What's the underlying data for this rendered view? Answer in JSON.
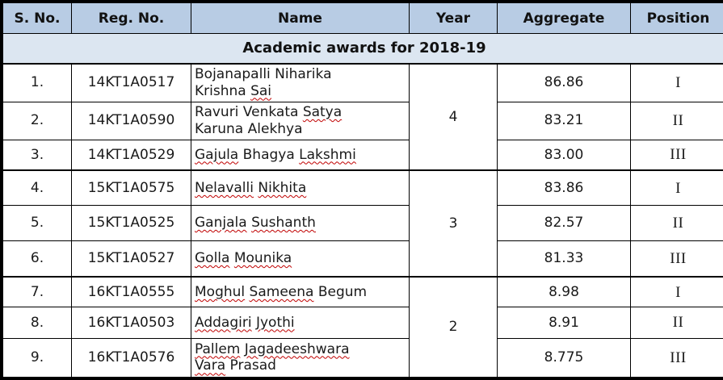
{
  "table": {
    "columns": [
      "S. No.",
      "Reg. No.",
      "Name",
      "Year",
      "Aggregate",
      "Position"
    ],
    "section_title": "Academic awards for 2018-19",
    "groups": [
      {
        "year": "4",
        "rows": [
          {
            "sno": "1.",
            "reg": "14KT1A0517",
            "name": [
              {
                "text": "Bojanapalli Niharika"
              },
              {
                "break": true
              },
              {
                "text": "Krishna "
              },
              {
                "text": "Sai",
                "wavy": true
              }
            ],
            "aggregate": "86.86",
            "position": "I"
          },
          {
            "sno": "2.",
            "reg": "14KT1A0590",
            "name": [
              {
                "text": "Ravuri Venkata "
              },
              {
                "text": "Satya",
                "wavy": true
              },
              {
                "break": true
              },
              {
                "text": "Karuna Alekhya"
              }
            ],
            "aggregate": "83.21",
            "position": "II"
          },
          {
            "sno": "3.",
            "reg": "14KT1A0529",
            "name": [
              {
                "text": "Gajula",
                "wavy": true
              },
              {
                "text": " Bhagya "
              },
              {
                "text": "Lakshmi",
                "wavy": true
              }
            ],
            "aggregate": "83.00",
            "position": "III"
          }
        ]
      },
      {
        "year": "3",
        "rows": [
          {
            "sno": "4.",
            "reg": "15KT1A0575",
            "name": [
              {
                "text": "Nelavalli",
                "wavy": true
              },
              {
                "text": " "
              },
              {
                "text": "Nikhita",
                "wavy": true
              }
            ],
            "aggregate": "83.86",
            "position": "I"
          },
          {
            "sno": "5.",
            "reg": "15KT1A0525",
            "name": [
              {
                "text": "Ganjala",
                "wavy": true
              },
              {
                "text": " "
              },
              {
                "text": "Sushanth",
                "wavy": true
              }
            ],
            "aggregate": "82.57",
            "position": "II"
          },
          {
            "sno": "6.",
            "reg": "15KT1A0527",
            "name": [
              {
                "text": "Golla",
                "wavy": true
              },
              {
                "text": " "
              },
              {
                "text": "Mounika",
                "wavy": true
              }
            ],
            "aggregate": "81.33",
            "position": "III"
          }
        ]
      },
      {
        "year": "2",
        "rows": [
          {
            "sno": "7.",
            "reg": "16KT1A0555",
            "name": [
              {
                "text": "Moghul",
                "wavy": true
              },
              {
                "text": " "
              },
              {
                "text": "Sameena",
                "wavy": true
              },
              {
                "text": " Begum"
              }
            ],
            "aggregate": "8.98",
            "position": "I"
          },
          {
            "sno": "8.",
            "reg": "16KT1A0503",
            "name": [
              {
                "text": "Addagiri",
                "wavy": true
              },
              {
                "text": " "
              },
              {
                "text": "Jyothi",
                "wavy": true
              }
            ],
            "aggregate": "8.91",
            "position": "II"
          },
          {
            "sno": "9.",
            "reg": "16KT1A0576",
            "name": [
              {
                "text": "Pallem",
                "wavy": true
              },
              {
                "text": " "
              },
              {
                "text": "Jagadeeshwara",
                "wavy": true
              },
              {
                "break": true
              },
              {
                "text": "Vara",
                "wavy": true
              },
              {
                "text": " Prasad"
              }
            ],
            "aggregate": "8.775",
            "position": "III"
          }
        ]
      }
    ]
  },
  "colors": {
    "header_bg": "#b8cce4",
    "title_bg": "#dce6f1",
    "border": "#000000",
    "spellcheck_underline": "#c00000",
    "text": "#1a1a1a"
  }
}
